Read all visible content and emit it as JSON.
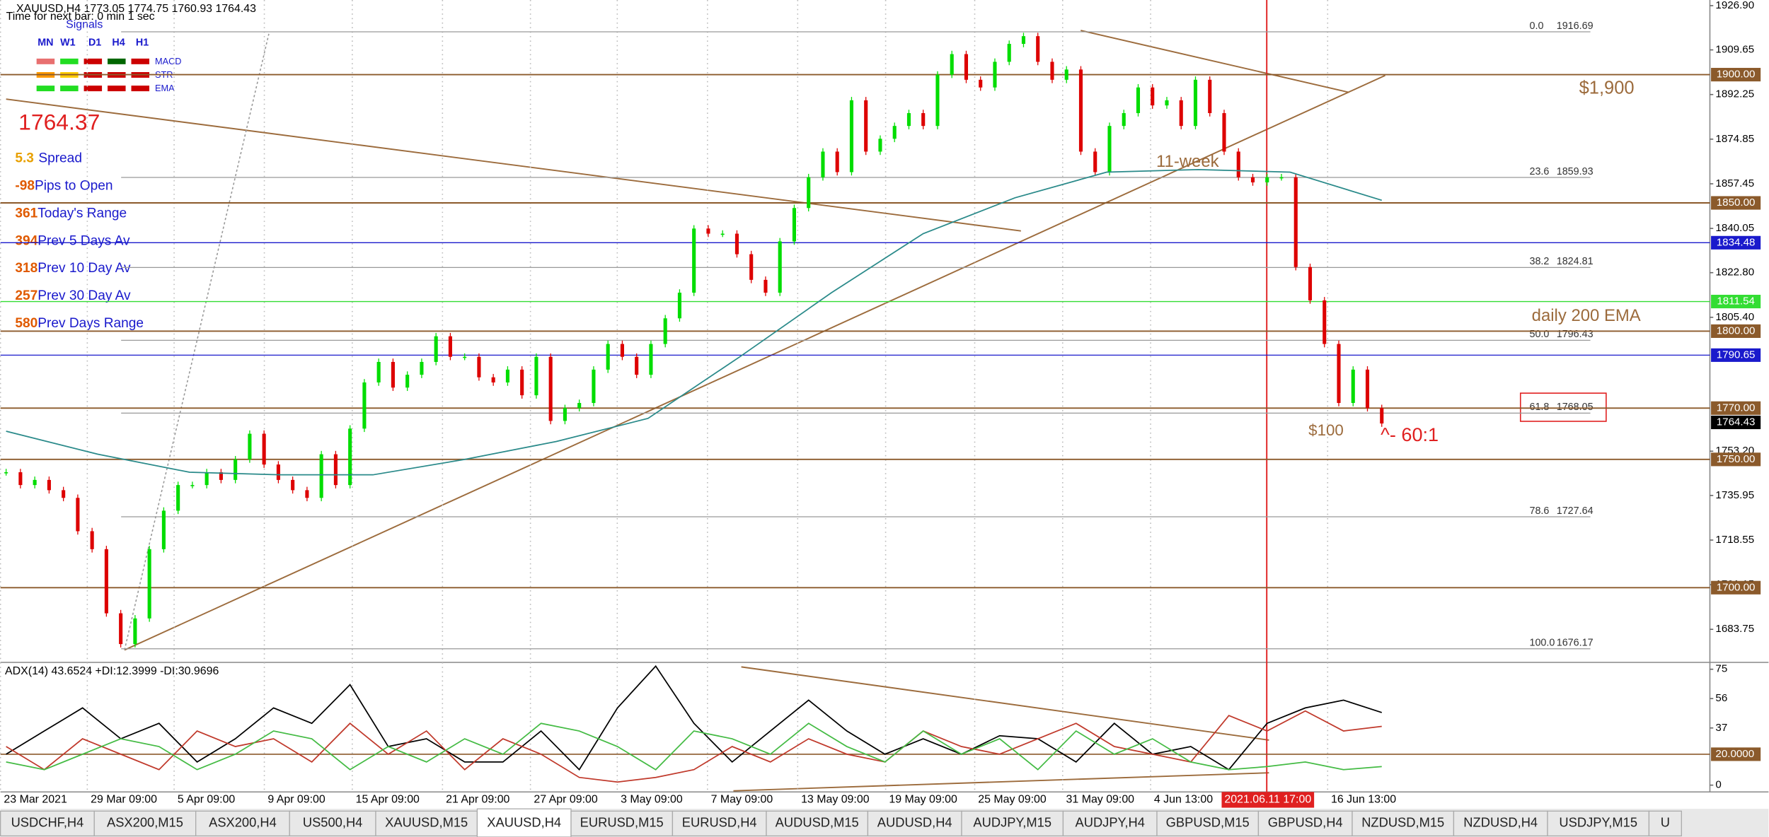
{
  "header": {
    "symbol_line": "XAUUSD,H4  1773.05 1774.75 1760.93 1764.43",
    "timer": "Time for next bar: 0 min 1 sec",
    "signals_title": "Signals",
    "timeframes": [
      "MN",
      "W1",
      "D1",
      "H4",
      "H1"
    ],
    "indicators": [
      "MACD",
      "STR",
      "EMA"
    ]
  },
  "info_panel": {
    "price": "1764.37",
    "rows": [
      {
        "value": "5.3",
        "label": "Spread"
      },
      {
        "value": "-98",
        "label": "Pips to Open"
      },
      {
        "value": "361",
        "label": "Today's Range"
      },
      {
        "value": "394",
        "label": "Prev 5 Days Av"
      },
      {
        "value": "318",
        "label": "Prev 10 Day Av"
      },
      {
        "value": "257",
        "label": "Prev 30 Day Av"
      },
      {
        "value": "580",
        "label": "Prev Days Range"
      }
    ]
  },
  "chart_data": [
    {
      "type": "candlestick",
      "ylim": [
        1671.3,
        1929.1
      ],
      "yticks": [
        {
          "value": 1926.9,
          "label": "1926.90"
        },
        {
          "value": 1909.65,
          "label": "1909.65"
        },
        {
          "value": 1892.25,
          "label": "1892.25"
        },
        {
          "value": 1874.85,
          "label": "1874.85"
        },
        {
          "value": 1857.45,
          "label": "1857.45"
        },
        {
          "value": 1840.05,
          "label": "1840.05"
        },
        {
          "value": 1822.8,
          "label": "1822.80"
        },
        {
          "value": 1805.4,
          "label": "1805.40"
        },
        {
          "value": 1753.2,
          "label": "1753.20"
        },
        {
          "value": 1735.95,
          "label": "1735.95"
        },
        {
          "value": 1718.55,
          "label": "1718.55"
        },
        {
          "value": 1701.15,
          "label": "1701.15"
        },
        {
          "value": 1683.75,
          "label": "1683.75"
        }
      ],
      "series": [
        {
          "color": "#00dd00",
          "down_color": "#dd0000",
          "values": [
            1745,
            1740,
            1742,
            1738,
            1735,
            1722,
            1715,
            1690,
            1678,
            1688,
            1715,
            1730,
            1740,
            1740,
            1745,
            1742,
            1750,
            1760,
            1748,
            1742,
            1738,
            1735,
            1752,
            1740,
            1762,
            1780,
            1788,
            1778,
            1783,
            1788,
            1798,
            1790,
            1790,
            1782,
            1780,
            1785,
            1775,
            1790,
            1765,
            1770,
            1772,
            1785,
            1795,
            1790,
            1783,
            1795,
            1805,
            1815,
            1840,
            1838,
            1838,
            1830,
            1820,
            1815,
            1835,
            1848,
            1860,
            1870,
            1862,
            1890,
            1870,
            1875,
            1880,
            1885,
            1880,
            1900,
            1908,
            1898,
            1895,
            1905,
            1912,
            1915,
            1905,
            1898,
            1902,
            1870,
            1862,
            1880,
            1885,
            1895,
            1888,
            1890,
            1880,
            1898,
            1885,
            1870,
            1860,
            1858,
            1860,
            1860,
            1825,
            1812,
            1795,
            1772,
            1785,
            1770,
            1764
          ]
        },
        {
          "type": "line",
          "color": "#2a8a8a",
          "values": [
            1761,
            1752,
            1745,
            1744,
            1744,
            1750,
            1757,
            1766,
            1790,
            1815,
            1838,
            1852,
            1862,
            1863,
            1862,
            1851
          ]
        }
      ],
      "levels": [
        {
          "value": 1900,
          "label": "1900.00",
          "color": "#8b5a2b"
        },
        {
          "value": 1850,
          "label": "1850.00",
          "color": "#8b5a2b"
        },
        {
          "value": 1834.48,
          "label": "1834.48",
          "color": "#1a1acc"
        },
        {
          "value": 1811.54,
          "label": "1811.54",
          "color": "#33dd33"
        },
        {
          "value": 1800,
          "label": "1800.00",
          "color": "#8b5a2b"
        },
        {
          "value": 1790.65,
          "label": "1790.65",
          "color": "#1a1acc"
        },
        {
          "value": 1770,
          "label": "1770.00",
          "color": "#8b5a2b"
        },
        {
          "value": 1764.43,
          "label": "1764.43",
          "color": "#000000"
        },
        {
          "value": 1750,
          "label": "1750.00",
          "color": "#8b5a2b"
        },
        {
          "value": 1700,
          "label": "1700.00",
          "color": "#8b5a2b"
        }
      ],
      "fib": [
        {
          "ratio": "0.0",
          "value": 1916.69,
          "label": "1916.69"
        },
        {
          "ratio": "23.6",
          "value": 1859.93,
          "label": "1859.93"
        },
        {
          "ratio": "38.2",
          "value": 1824.81,
          "label": "1824.81"
        },
        {
          "ratio": "50.0",
          "value": 1796.43,
          "label": "1796.43"
        },
        {
          "ratio": "61.8",
          "value": 1768.05,
          "label": "1768.05"
        },
        {
          "ratio": "78.6",
          "value": 1727.64,
          "label": "1727.64"
        },
        {
          "ratio": "100.0",
          "value": 1676.17,
          "label": "1676.17"
        }
      ],
      "annotations": [
        "$1,900",
        "11-week",
        "daily 200 EMA",
        "$100",
        "^- 60:1"
      ],
      "xlabels": [
        "23 Mar 2021",
        "29 Mar 09:00",
        "5 Apr 09:00",
        "9 Apr 09:00",
        "15 Apr 09:00",
        "21 Apr 09:00",
        "27 Apr 09:00",
        "3 May 09:00",
        "7 May 09:00",
        "13 May 09:00",
        "19 May 09:00",
        "25 May 09:00",
        "31 May 09:00",
        "4 Jun 13:00",
        "16 Jun 13:00"
      ],
      "cursor_label": "2021.06.11 17:00"
    },
    {
      "type": "line",
      "title": "ADX(14) 43.6524 +DI:12.3999 -DI:30.9696",
      "ylim": [
        -4.4,
        78.7
      ],
      "yticks": [
        75,
        56,
        37,
        {
          "value": 20,
          "label": "20.0000"
        },
        0
      ],
      "series": [
        {
          "color": "#000000",
          "values": [
            20,
            35,
            50,
            30,
            40,
            15,
            30,
            50,
            40,
            65,
            25,
            30,
            15,
            15,
            35,
            10,
            50,
            77,
            40,
            15,
            35,
            55,
            35,
            20,
            30,
            20,
            32,
            30,
            15,
            40,
            20,
            25,
            10,
            40,
            50,
            55,
            47
          ]
        },
        {
          "color": "#c0392b",
          "values": [
            25,
            10,
            30,
            20,
            10,
            35,
            25,
            30,
            15,
            40,
            20,
            35,
            10,
            30,
            20,
            5,
            2,
            5,
            10,
            25,
            15,
            30,
            20,
            15,
            35,
            25,
            20,
            30,
            40,
            25,
            20,
            15,
            45,
            35,
            48,
            35,
            38
          ]
        },
        {
          "color": "#44bb44",
          "values": [
            15,
            10,
            20,
            30,
            25,
            10,
            20,
            35,
            30,
            10,
            25,
            15,
            30,
            20,
            40,
            35,
            25,
            10,
            35,
            30,
            20,
            40,
            25,
            15,
            35,
            20,
            30,
            10,
            35,
            20,
            30,
            15,
            10,
            12,
            15,
            10,
            12
          ]
        }
      ]
    }
  ],
  "tabs": [
    "USDCHF,H4",
    "ASX200,M15",
    "ASX200,H4",
    "US500,H4",
    "XAUUSD,M15",
    "XAUUSD,H4",
    "EURUSD,M15",
    "EURUSD,H4",
    "AUDUSD,M15",
    "AUDUSD,H4",
    "AUDJPY,M15",
    "AUDJPY,H4",
    "GBPUSD,M15",
    "GBPUSD,H4",
    "NZDUSD,M15",
    "NZDUSD,H4",
    "USDJPY,M15",
    "U"
  ],
  "active_tab": 5
}
